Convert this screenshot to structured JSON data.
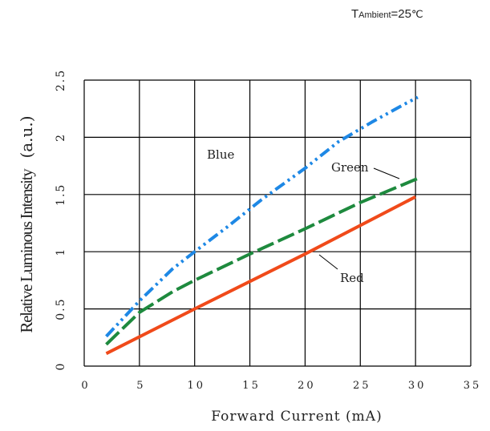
{
  "condition": {
    "symbol": "T",
    "subscript": "Ambient",
    "value": "=25",
    "unit": "℃"
  },
  "chart_data": {
    "type": "line",
    "title": "",
    "xlabel": "Forward Current (mA)",
    "ylabel": "Relative Luminous Intensity",
    "ylabel_unit": "(a.u.)",
    "xlim": [
      0,
      35
    ],
    "ylim": [
      0,
      2.5
    ],
    "x_ticks": [
      0,
      5,
      10,
      15,
      20,
      25,
      30,
      35
    ],
    "y_ticks": [
      0,
      0.5,
      1,
      1.5,
      2,
      2.5
    ],
    "x_tick_labels": [
      "0",
      "5",
      "10",
      "15",
      "20",
      "25",
      "30",
      "35"
    ],
    "y_tick_labels": [
      "0",
      "0.5",
      "1",
      "1.5",
      "2",
      "2.5"
    ],
    "grid": true,
    "series": [
      {
        "name": "Blue",
        "color": "#1e88e5",
        "dash": "dash-dot-dot",
        "x": [
          2,
          5,
          8,
          10,
          13,
          16,
          20,
          23,
          26,
          29,
          30.2
        ],
        "y": [
          0.26,
          0.57,
          0.85,
          1.0,
          1.22,
          1.45,
          1.73,
          1.96,
          2.13,
          2.29,
          2.35
        ]
      },
      {
        "name": "Green",
        "color": "#1e8a3e",
        "dash": "dashed",
        "x": [
          2,
          5,
          8,
          10,
          15,
          20,
          25,
          30.2
        ],
        "y": [
          0.19,
          0.47,
          0.65,
          0.75,
          0.98,
          1.2,
          1.43,
          1.64
        ]
      },
      {
        "name": "Red",
        "color": "#f04a1a",
        "dash": "solid",
        "x": [
          2,
          10,
          20,
          30
        ],
        "y": [
          0.11,
          0.5,
          0.98,
          1.48
        ]
      }
    ]
  }
}
